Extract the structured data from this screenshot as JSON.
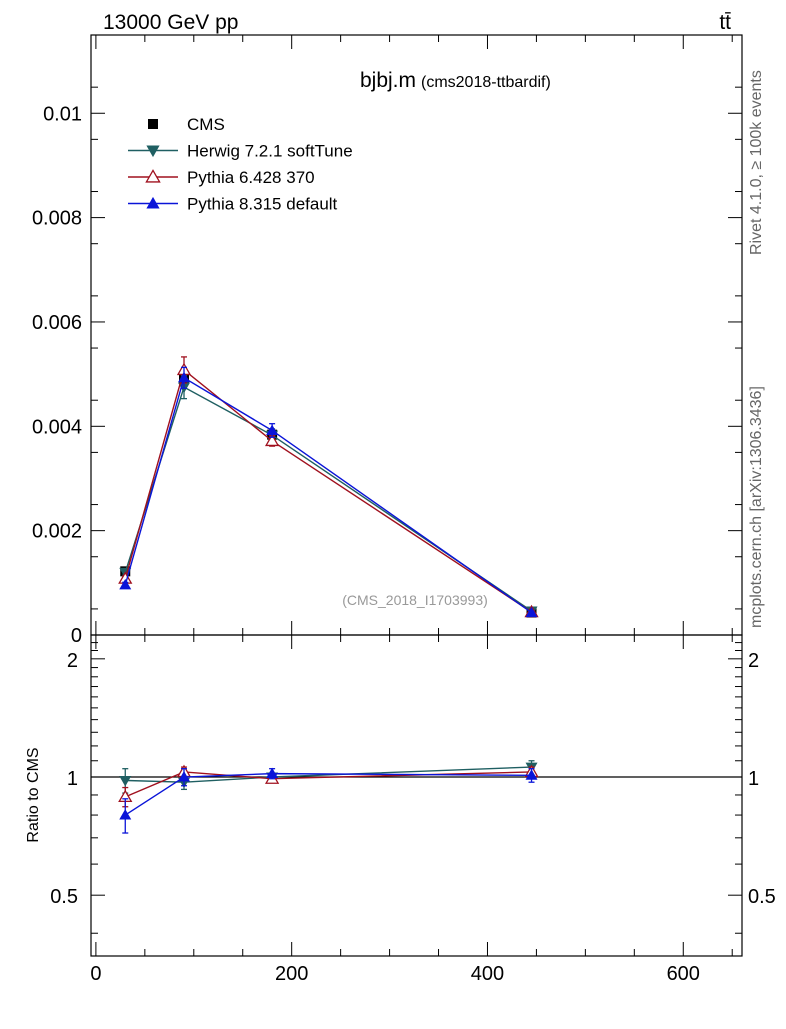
{
  "header": {
    "energy_label": "13000 GeV pp",
    "process_label": "tt̄"
  },
  "title": {
    "main": "bjbj.m",
    "sub": "(cms2018-ttbardif)"
  },
  "side_labels": {
    "rivet": "Rivet 4.1.0, ≥ 100k events",
    "mcplots": "mcplots.cern.ch [arXiv:1306.3436]"
  },
  "watermark": "(CMS_2018_I1703993)",
  "colors": {
    "cms": "#000000",
    "herwig": "#1f5f62",
    "pythia6": "#a0101e",
    "pythia8": "#0a14d8"
  },
  "chart_data": [
    {
      "type": "line",
      "panel": "main",
      "xlim": [
        -5,
        660
      ],
      "ylim": [
        0,
        0.0115
      ],
      "x_ticks": [
        0,
        200,
        400,
        600
      ],
      "y_ticks": [
        0,
        0.002,
        0.004,
        0.006,
        0.008,
        0.01
      ],
      "y_tick_labels": [
        "0",
        "0.002",
        "0.004",
        "0.006",
        "0.008",
        "0.01"
      ],
      "legend_position": "top-left",
      "series": [
        {
          "name": "CMS",
          "key": "cms",
          "marker": "square",
          "x": [
            30,
            90,
            180,
            445
          ],
          "y": [
            0.00122,
            0.00493,
            0.00384,
            0.00043
          ],
          "err": [
            5e-05,
            0.0001,
            8e-05,
            2e-05
          ]
        },
        {
          "name": "Herwig 7.2.1 softTune",
          "key": "herwig",
          "marker": "triangle-down",
          "x": [
            30,
            90,
            180,
            445
          ],
          "y": [
            0.0012,
            0.00475,
            0.00383,
            0.00046
          ],
          "err": [
            5e-05,
            0.00022,
            0.00012,
            2e-05
          ]
        },
        {
          "name": "Pythia 6.428 370",
          "key": "pythia6",
          "marker": "triangle-up-open",
          "x": [
            30,
            90,
            180,
            445
          ],
          "y": [
            0.00108,
            0.00508,
            0.00372,
            0.00044
          ],
          "err": [
            5e-05,
            0.00025,
            0.0001,
            2e-05
          ]
        },
        {
          "name": "Pythia 8.315 default",
          "key": "pythia8",
          "marker": "triangle-up",
          "x": [
            30,
            90,
            180,
            445
          ],
          "y": [
            0.00096,
            0.00493,
            0.00392,
            0.00043
          ],
          "err": [
            5e-05,
            0.0002,
            0.00013,
            2e-05
          ]
        }
      ]
    },
    {
      "type": "line",
      "panel": "ratio",
      "ylabel": "Ratio to CMS",
      "xlim": [
        -5,
        660
      ],
      "ylim": [
        0.35,
        2.3
      ],
      "x_ticks": [
        0,
        200,
        400,
        600
      ],
      "x_tick_labels": [
        "0",
        "200",
        "400",
        "600"
      ],
      "y_ticks": [
        0.5,
        1,
        2
      ],
      "y_tick_labels": [
        "0.5",
        "1",
        "2"
      ],
      "reference_line": 1,
      "series": [
        {
          "name": "Herwig 7.2.1 softTune",
          "key": "herwig",
          "marker": "triangle-down",
          "x": [
            30,
            90,
            180,
            445
          ],
          "y": [
            0.98,
            0.97,
            1.0,
            1.06
          ],
          "err": [
            0.07,
            0.04,
            0.02,
            0.04
          ]
        },
        {
          "name": "Pythia 6.428 370",
          "key": "pythia6",
          "marker": "triangle-up-open",
          "x": [
            30,
            90,
            180,
            445
          ],
          "y": [
            0.89,
            1.03,
            0.99,
            1.03
          ],
          "err": [
            0.05,
            0.03,
            0.02,
            0.03
          ]
        },
        {
          "name": "Pythia 8.315 default",
          "key": "pythia8",
          "marker": "triangle-up",
          "x": [
            30,
            90,
            180,
            445
          ],
          "y": [
            0.8,
            1.0,
            1.02,
            1.01
          ],
          "err": [
            0.08,
            0.05,
            0.03,
            0.04
          ]
        }
      ]
    }
  ]
}
